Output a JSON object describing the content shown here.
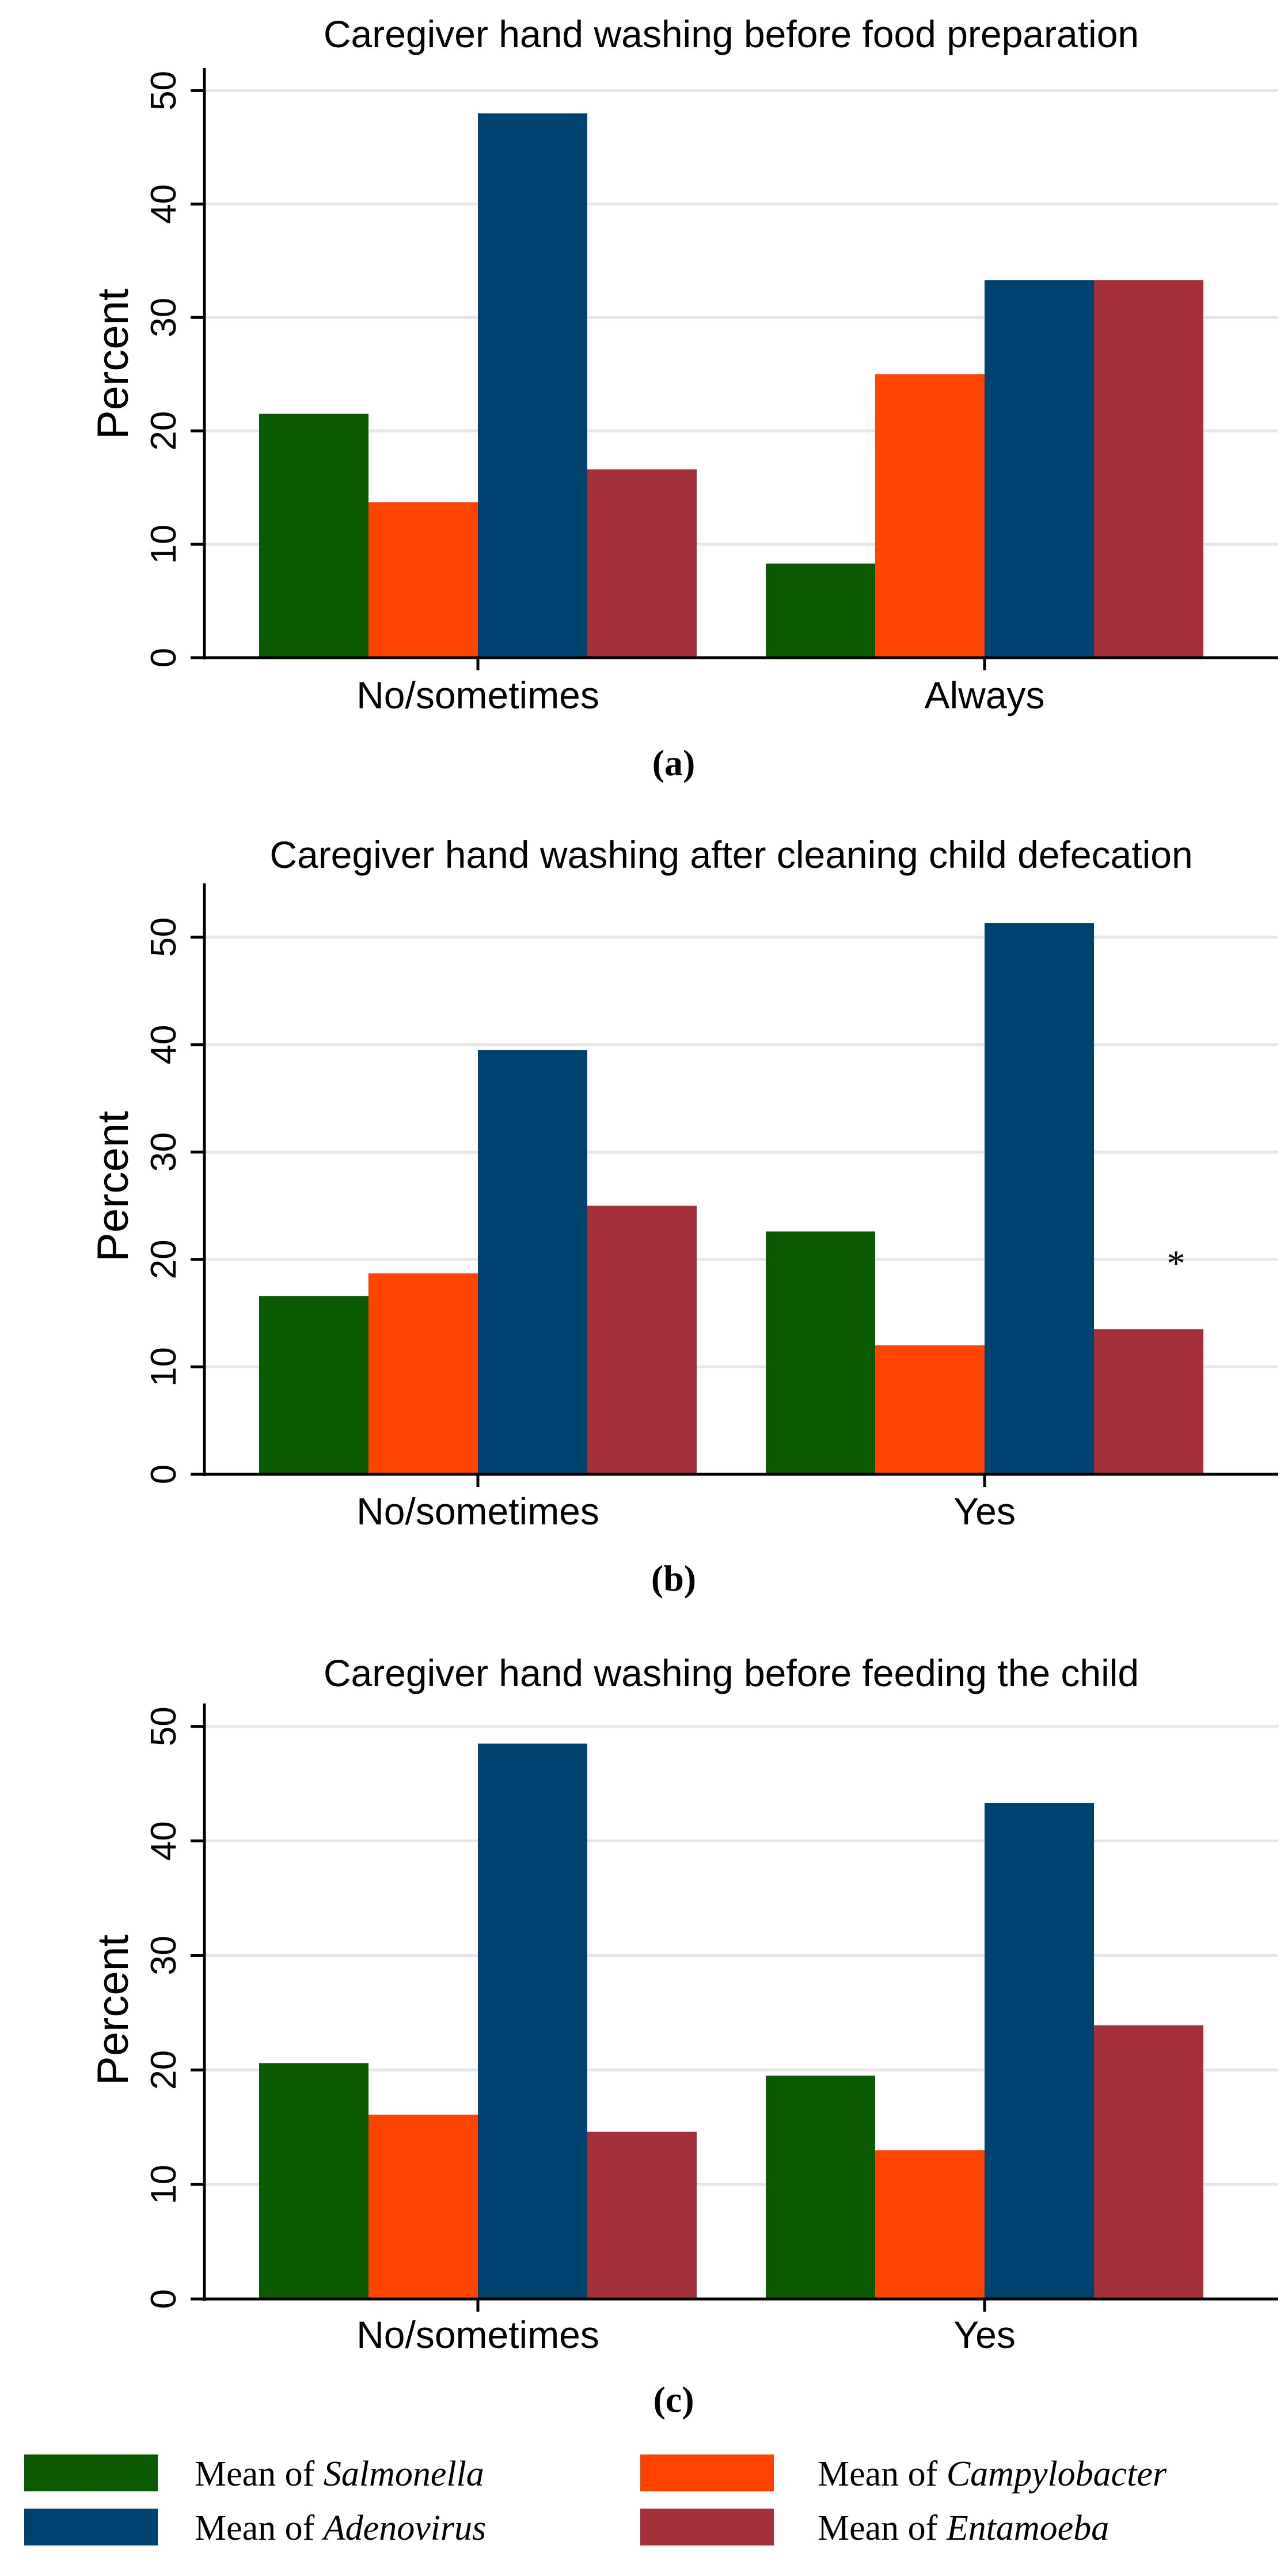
{
  "colors": {
    "salmonella": "#0a5a00",
    "campylobacter": "#ff4400",
    "adenovirus": "#00426f",
    "entamoeba": "#a5303a",
    "grid": "#e6e6e6"
  },
  "legend": {
    "prefix": "Mean of",
    "items": [
      {
        "key": "salmonella",
        "name": "Salmonella"
      },
      {
        "key": "campylobacter",
        "name": "Campylobacter"
      },
      {
        "key": "adenovirus",
        "name": "Adenovirus"
      },
      {
        "key": "entamoeba",
        "name": "Entamoeba"
      }
    ]
  },
  "chart_data": [
    {
      "type": "bar",
      "title": "Caregiver hand washing before food preparation",
      "panel_label": "(a)",
      "ylabel": "Percent",
      "ylim": [
        0,
        52
      ],
      "yticks": [
        0,
        10,
        20,
        30,
        40,
        50
      ],
      "categories": [
        "No/sometimes",
        "Always"
      ],
      "series": [
        {
          "name": "Salmonella",
          "key": "salmonella",
          "values": [
            21.5,
            8.3
          ]
        },
        {
          "name": "Campylobacter",
          "key": "campylobacter",
          "values": [
            13.7,
            25.0
          ]
        },
        {
          "name": "Adenovirus",
          "key": "adenovirus",
          "values": [
            48.0,
            33.3
          ]
        },
        {
          "name": "Entamoeba",
          "key": "entamoeba",
          "values": [
            16.6,
            33.3
          ]
        }
      ],
      "annotations": []
    },
    {
      "type": "bar",
      "title": "Caregiver hand washing after cleaning child defecation",
      "panel_label": "(b)",
      "ylabel": "Percent",
      "ylim": [
        0,
        55
      ],
      "yticks": [
        0,
        10,
        20,
        30,
        40,
        50
      ],
      "categories": [
        "No/sometimes",
        "Yes"
      ],
      "series": [
        {
          "name": "Salmonella",
          "key": "salmonella",
          "values": [
            16.6,
            22.6
          ]
        },
        {
          "name": "Campylobacter",
          "key": "campylobacter",
          "values": [
            18.7,
            12.0
          ]
        },
        {
          "name": "Adenovirus",
          "key": "adenovirus",
          "values": [
            39.5,
            51.3
          ]
        },
        {
          "name": "Entamoeba",
          "key": "entamoeba",
          "values": [
            25.0,
            13.5
          ]
        }
      ],
      "annotations": [
        {
          "text": "*",
          "category_index": 1,
          "series_index": 3,
          "value": 18.5
        }
      ]
    },
    {
      "type": "bar",
      "title": "Caregiver hand washing before feeding the child",
      "panel_label": "(c)",
      "ylabel": "Percent",
      "ylim": [
        0,
        52
      ],
      "yticks": [
        0,
        10,
        20,
        30,
        40,
        50
      ],
      "categories": [
        "No/sometimes",
        "Yes"
      ],
      "series": [
        {
          "name": "Salmonella",
          "key": "salmonella",
          "values": [
            20.6,
            19.5
          ]
        },
        {
          "name": "Campylobacter",
          "key": "campylobacter",
          "values": [
            16.1,
            13.0
          ]
        },
        {
          "name": "Adenovirus",
          "key": "adenovirus",
          "values": [
            48.5,
            43.3
          ]
        },
        {
          "name": "Entamoeba",
          "key": "entamoeba",
          "values": [
            14.6,
            23.9
          ]
        }
      ],
      "annotations": []
    }
  ]
}
